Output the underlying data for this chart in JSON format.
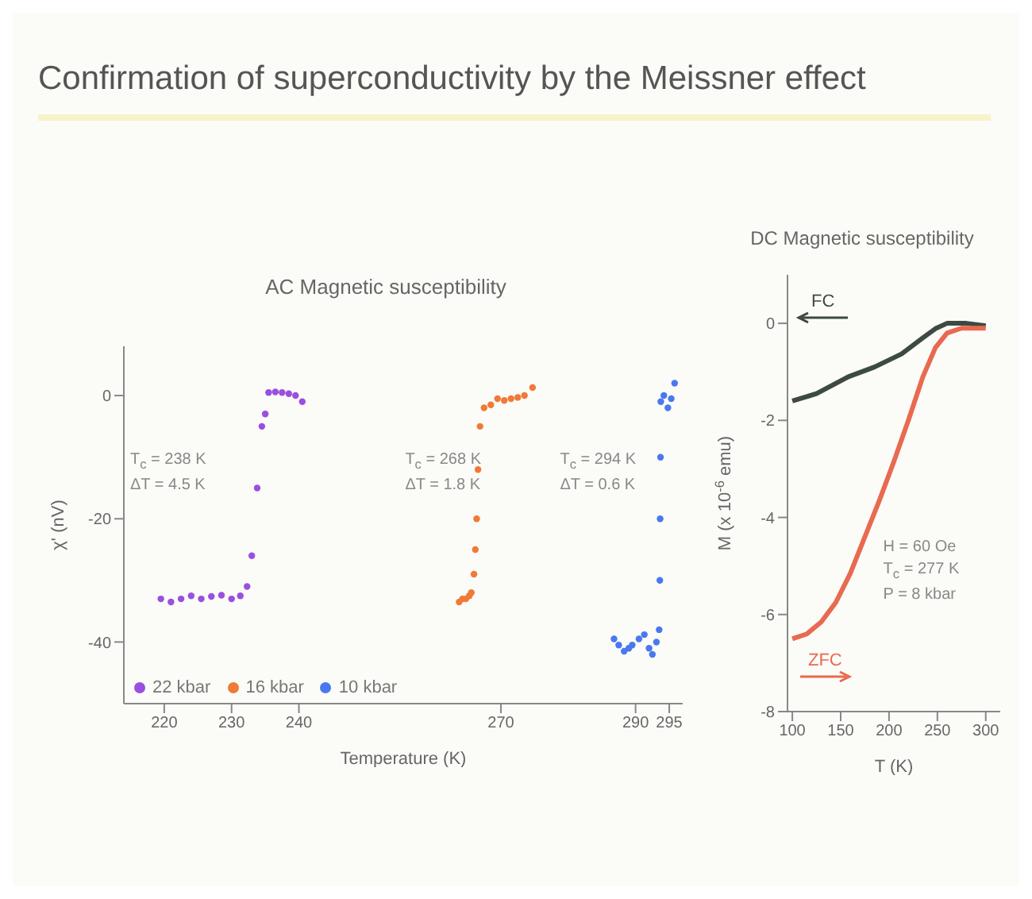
{
  "chart_data": [
    {
      "type": "scatter",
      "title": "Confirmation of superconductivity by the Meissner effect",
      "subtitle": "AC Magnetic susceptibility",
      "xlabel": "Temperature (K)",
      "ylabel": "χ' (nV)",
      "xlim": [
        214,
        297
      ],
      "xticks": [
        220,
        230,
        240,
        270,
        290,
        295
      ],
      "ylim": [
        -50,
        8
      ],
      "yticks": [
        0,
        -20,
        -40
      ],
      "marker": "circle",
      "legend": "bottom left",
      "annotations": [
        "T$_{c}$ = 238 K",
        "ΔT = 4.5 K",
        "T$_{c}$ = 268 K",
        "ΔT = 1.8 K",
        "T$_{c}$ = 294 K",
        "ΔT = 0.6 K"
      ],
      "series": [
        {
          "name": "22 kbar",
          "color": "#9b4fe0",
          "x": [
            219.5,
            221,
            222.5,
            224,
            225.5,
            227,
            228.5,
            230,
            231.3,
            232.3,
            233,
            233.8,
            234.5,
            235,
            235.5,
            236.5,
            237.5,
            238.5,
            239.5,
            240.5
          ],
          "values": [
            -33,
            -33.5,
            -33,
            -32.5,
            -33,
            -32.6,
            -32.4,
            -33,
            -32.5,
            -31,
            -26,
            -15,
            -5,
            -3,
            0.5,
            0.6,
            0.5,
            0.3,
            0,
            -1
          ]
        },
        {
          "name": "16 kbar",
          "color": "#f07a36",
          "x": [
            263.8,
            264.3,
            264.8,
            265.3,
            265.6,
            266,
            266.2,
            266.4,
            266.6,
            266.9,
            267.5,
            268.5,
            269.5,
            270.5,
            271.5,
            272.5,
            273.5,
            274.7
          ],
          "values": [
            -33.5,
            -33,
            -33,
            -32.5,
            -32,
            -29,
            -25,
            -20,
            -12,
            -5,
            -2,
            -1.5,
            -0.5,
            -0.8,
            -0.5,
            -0.3,
            0,
            1.3
          ]
        },
        {
          "name": "10 kbar",
          "color": "#4a78f0",
          "x": [
            286.8,
            287.5,
            288.3,
            289,
            289.5,
            290.5,
            291.3,
            292,
            292.5,
            293.1,
            293.5,
            293.6,
            293.65,
            293.7,
            293.75,
            294.2,
            294.8,
            295.3,
            295.8
          ],
          "values": [
            -39.5,
            -40.5,
            -41.5,
            -41,
            -40.5,
            -39.5,
            -38.8,
            -41,
            -42,
            -40,
            -38,
            -30,
            -20,
            -10,
            -1,
            0,
            -2,
            -0.5,
            2
          ]
        }
      ]
    },
    {
      "type": "line",
      "subtitle": "DC Magnetic susceptibility",
      "xlabel": "T (K)",
      "ylabel": "M (x 10$^{-6}$ emu)",
      "xlim": [
        95,
        315
      ],
      "xticks": [
        100,
        150,
        200,
        250,
        300
      ],
      "ylim": [
        -8,
        1
      ],
      "yticks": [
        0,
        -2,
        -4,
        -6,
        -8
      ],
      "marker": "none",
      "line_style": "solid",
      "legend": false,
      "annotations": [
        "H = 60 Oe",
        "T$_{c}$ = 277 K",
        "P = 8 kbar"
      ],
      "series": [
        {
          "name": "FC",
          "color": "#3d4a42",
          "x": [
            100,
            125,
            158,
            185,
            213,
            235,
            248,
            260,
            280,
            300
          ],
          "values": [
            -1.6,
            -1.45,
            -1.1,
            -0.9,
            -0.63,
            -0.3,
            -0.11,
            0,
            0,
            -0.05
          ]
        },
        {
          "name": "ZFC",
          "color": "#e86a50",
          "x": [
            100,
            115,
            130,
            145,
            160,
            175,
            190,
            205,
            220,
            235,
            248,
            260,
            275,
            300
          ],
          "values": [
            -6.5,
            -6.4,
            -6.15,
            -5.75,
            -5.15,
            -4.4,
            -3.65,
            -2.85,
            -2.0,
            -1.1,
            -0.5,
            -0.2,
            -0.1,
            -0.1
          ]
        }
      ]
    }
  ]
}
